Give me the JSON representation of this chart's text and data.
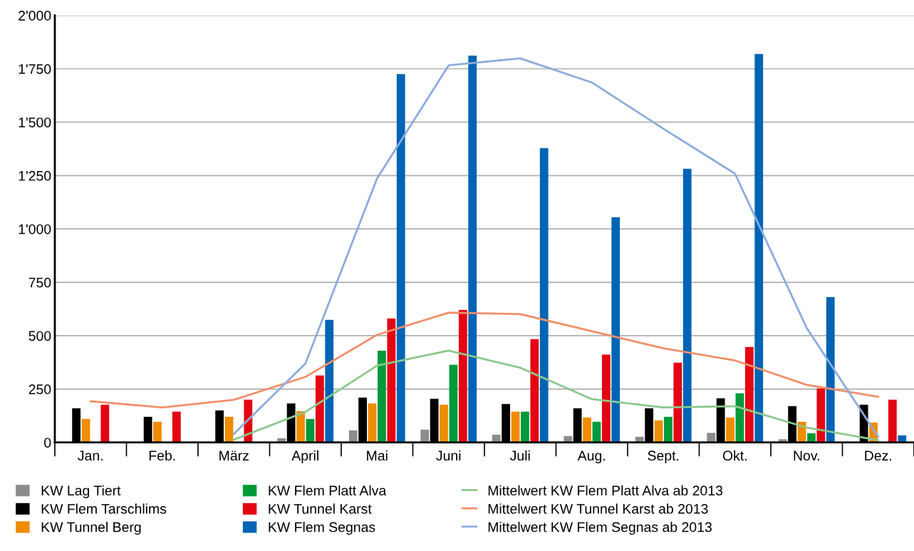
{
  "chart_data": {
    "type": "bar",
    "categories": [
      "Jan.",
      "Feb.",
      "März",
      "April",
      "Mai",
      "Juni",
      "Juli",
      "Aug.",
      "Sept.",
      "Okt.",
      "Nov.",
      "Dez."
    ],
    "ylim": [
      0,
      2000
    ],
    "yticks": [
      {
        "value": 0,
        "label": "0"
      },
      {
        "value": 250,
        "label": "250"
      },
      {
        "value": 500,
        "label": "500"
      },
      {
        "value": 750,
        "label": "750"
      },
      {
        "value": 1000,
        "label": "1'000"
      },
      {
        "value": 1250,
        "label": "1'250"
      },
      {
        "value": 1500,
        "label": "1'500"
      },
      {
        "value": 1750,
        "label": "1'750"
      },
      {
        "value": 2000,
        "label": "2'000"
      }
    ],
    "grid": "y",
    "legend": "bottom",
    "series": [
      {
        "name": "KW Lag Tiert",
        "color": "#8c8c8e",
        "values": [
          null,
          null,
          null,
          20,
          57,
          60,
          37,
          30,
          27,
          45,
          15,
          null
        ]
      },
      {
        "name": "KW Flem Tarschlims",
        "color": "#000000",
        "values": [
          160,
          120,
          150,
          183,
          210,
          204,
          180,
          160,
          160,
          207,
          170,
          177
        ]
      },
      {
        "name": "KW Tunnel Berg",
        "color": "#f08c00",
        "values": [
          110,
          97,
          120,
          147,
          183,
          177,
          144,
          117,
          103,
          117,
          97,
          93
        ]
      },
      {
        "name": "KW Flem Platt Alva",
        "color": "#009a3a",
        "values": [
          null,
          null,
          null,
          110,
          430,
          364,
          144,
          97,
          120,
          230,
          43,
          null
        ]
      },
      {
        "name": "KW Tunnel Karst",
        "color": "#e30613",
        "values": [
          177,
          144,
          200,
          314,
          581,
          621,
          484,
          411,
          374,
          447,
          254,
          200
        ]
      },
      {
        "name": "KW Flem Segnas",
        "color": "#0064b4",
        "values": [
          null,
          null,
          null,
          574,
          1725,
          1812,
          1379,
          1055,
          1282,
          1819,
          681,
          33
        ]
      },
      {
        "name": "Mittelwert KW Flem Platt Alva ab 2013",
        "type": "line",
        "color": "#8cc88c",
        "values": [
          null,
          null,
          13,
          143,
          360,
          430,
          350,
          203,
          164,
          170,
          70,
          10
        ]
      },
      {
        "name": "Mittelwert KW Tunnel Karst ab 2013",
        "type": "line",
        "color": "#f0906a",
        "values": [
          193,
          164,
          200,
          307,
          504,
          608,
          601,
          521,
          441,
          384,
          270,
          214
        ]
      },
      {
        "name": "Mittelwert KW Flem Segnas ab 2013",
        "type": "line",
        "color": "#8cacdc",
        "values": [
          null,
          null,
          40,
          370,
          1236,
          1766,
          1799,
          1686,
          1469,
          1259,
          537,
          27
        ]
      }
    ]
  }
}
